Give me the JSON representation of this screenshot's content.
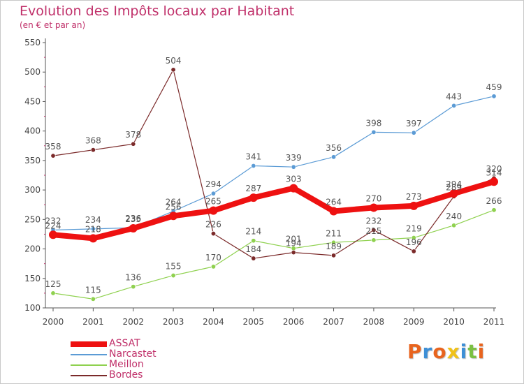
{
  "title": "Evolution des Impôts locaux par Habitant",
  "subtitle": "(en € et par an)",
  "logo": "Proxiti",
  "logo_colors": [
    "#e8641e",
    "#3d8fd6",
    "#e8641e",
    "#f0c21a",
    "#3d8fd6",
    "#7bc043",
    "#e8641e"
  ],
  "chart_data": {
    "type": "line",
    "title": "Evolution des Impôts locaux par Habitant",
    "subtitle": "(en € et par an)",
    "x": [
      "2000",
      "2001",
      "2002",
      "2003",
      "2004",
      "2005",
      "2006",
      "2007",
      "2008",
      "2009",
      "2010",
      "2011"
    ],
    "ylim": [
      100,
      550
    ],
    "yticks": [
      100,
      150,
      200,
      250,
      300,
      350,
      400,
      450,
      500,
      550
    ],
    "grid": false,
    "legend": "bottom-left",
    "series": [
      {
        "name": "ASSAT",
        "color": "#ee1111",
        "values": [
          224,
          218,
          235,
          256,
          265,
          287,
          303,
          264,
          270,
          273,
          294,
          314
        ],
        "labels": [
          "224",
          "218",
          "235",
          "256",
          "265",
          "287",
          "303",
          "264",
          "270",
          "273",
          "294",
          "314"
        ]
      },
      {
        "name": "Narcastet",
        "color": "#5b9bd5",
        "values": [
          232,
          234,
          236,
          264,
          294,
          341,
          339,
          356,
          398,
          397,
          443,
          459
        ],
        "labels": [
          "232",
          "234",
          "236",
          "264",
          "294",
          "341",
          "339",
          "356",
          "398",
          "397",
          "443",
          "459"
        ]
      },
      {
        "name": "Meillon",
        "color": "#8fd14f",
        "values": [
          125,
          115,
          136,
          155,
          170,
          214,
          201,
          211,
          215,
          219,
          240,
          266
        ],
        "labels": [
          "125",
          "115",
          "136",
          "155",
          "170",
          "214",
          "201",
          "211",
          "215",
          "219",
          "240",
          "266"
        ]
      },
      {
        "name": "Bordes",
        "color": "#7b2a2a",
        "values": [
          358,
          368,
          378,
          504,
          226,
          184,
          194,
          189,
          232,
          196,
          289,
          320
        ],
        "labels": [
          "358",
          "368",
          "378",
          "504",
          "226",
          "184",
          "194",
          "189",
          "232",
          "196",
          "289",
          "320"
        ]
      }
    ]
  }
}
